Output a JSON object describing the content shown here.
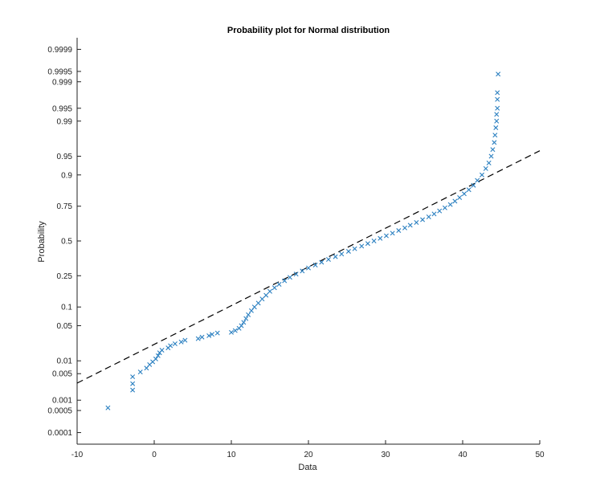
{
  "chart_data": {
    "type": "scatter",
    "title": "Probability plot for Normal distribution",
    "xlabel": "Data",
    "ylabel": "Probability",
    "xlim": [
      -10,
      50
    ],
    "x_ticks": [
      -10,
      0,
      10,
      20,
      30,
      40,
      50
    ],
    "y_scale": "normal-probability",
    "y_ticks": [
      {
        "p": 0.0001,
        "label": "0.0001"
      },
      {
        "p": 0.0005,
        "label": "0.0005"
      },
      {
        "p": 0.001,
        "label": "0.001"
      },
      {
        "p": 0.005,
        "label": "0.005"
      },
      {
        "p": 0.01,
        "label": "0.01"
      },
      {
        "p": 0.05,
        "label": "0.05"
      },
      {
        "p": 0.1,
        "label": "0.1"
      },
      {
        "p": 0.25,
        "label": "0.25"
      },
      {
        "p": 0.5,
        "label": "0.5"
      },
      {
        "p": 0.75,
        "label": "0.75"
      },
      {
        "p": 0.9,
        "label": "0.9"
      },
      {
        "p": 0.95,
        "label": "0.95"
      },
      {
        "p": 0.99,
        "label": "0.99"
      },
      {
        "p": 0.995,
        "label": "0.995"
      },
      {
        "p": 0.999,
        "label": "0.999"
      },
      {
        "p": 0.9995,
        "label": "0.9995"
      },
      {
        "p": 0.9999,
        "label": "0.9999"
      }
    ],
    "grid": false,
    "marker": "x",
    "series_color": "#2a7fc0",
    "reference_line": {
      "style": "dashed",
      "color": "#000000",
      "x": [
        -10,
        50
      ],
      "p": [
        0.0029,
        0.96
      ]
    },
    "points": [
      [
        -6.0,
        0.0006
      ],
      [
        -2.8,
        0.0019
      ],
      [
        -2.8,
        0.0028
      ],
      [
        -2.8,
        0.0042
      ],
      [
        -1.8,
        0.0055
      ],
      [
        -1.0,
        0.0068
      ],
      [
        -0.6,
        0.0082
      ],
      [
        -0.2,
        0.0095
      ],
      [
        0.2,
        0.011
      ],
      [
        0.5,
        0.013
      ],
      [
        0.7,
        0.015
      ],
      [
        1.0,
        0.017
      ],
      [
        1.8,
        0.019
      ],
      [
        2.1,
        0.021
      ],
      [
        2.7,
        0.023
      ],
      [
        3.5,
        0.025
      ],
      [
        4.0,
        0.027
      ],
      [
        5.7,
        0.029
      ],
      [
        6.2,
        0.031
      ],
      [
        7.1,
        0.033
      ],
      [
        7.5,
        0.035
      ],
      [
        8.2,
        0.037
      ],
      [
        10.0,
        0.038
      ],
      [
        10.5,
        0.041
      ],
      [
        11.0,
        0.045
      ],
      [
        11.3,
        0.05
      ],
      [
        11.6,
        0.057
      ],
      [
        11.9,
        0.066
      ],
      [
        12.2,
        0.076
      ],
      [
        12.6,
        0.088
      ],
      [
        13.0,
        0.1
      ],
      [
        13.5,
        0.114
      ],
      [
        14.0,
        0.13
      ],
      [
        14.5,
        0.146
      ],
      [
        15.0,
        0.164
      ],
      [
        15.6,
        0.182
      ],
      [
        16.2,
        0.2
      ],
      [
        16.9,
        0.22
      ],
      [
        17.6,
        0.24
      ],
      [
        18.4,
        0.26
      ],
      [
        19.2,
        0.28
      ],
      [
        20.0,
        0.3
      ],
      [
        20.9,
        0.32
      ],
      [
        21.7,
        0.34
      ],
      [
        22.6,
        0.36
      ],
      [
        23.5,
        0.38
      ],
      [
        24.3,
        0.4
      ],
      [
        25.2,
        0.42
      ],
      [
        26.0,
        0.44
      ],
      [
        26.9,
        0.46
      ],
      [
        27.7,
        0.48
      ],
      [
        28.5,
        0.5
      ],
      [
        29.3,
        0.52
      ],
      [
        30.1,
        0.54
      ],
      [
        30.9,
        0.56
      ],
      [
        31.7,
        0.58
      ],
      [
        32.5,
        0.6
      ],
      [
        33.2,
        0.62
      ],
      [
        34.0,
        0.64
      ],
      [
        34.8,
        0.66
      ],
      [
        35.6,
        0.68
      ],
      [
        36.3,
        0.7
      ],
      [
        37.0,
        0.72
      ],
      [
        37.7,
        0.74
      ],
      [
        38.4,
        0.76
      ],
      [
        39.0,
        0.78
      ],
      [
        39.6,
        0.8
      ],
      [
        40.2,
        0.82
      ],
      [
        40.8,
        0.84
      ],
      [
        41.4,
        0.86
      ],
      [
        41.9,
        0.88
      ],
      [
        42.5,
        0.9
      ],
      [
        43.0,
        0.92
      ],
      [
        43.4,
        0.935
      ],
      [
        43.7,
        0.95
      ],
      [
        43.9,
        0.962
      ],
      [
        44.1,
        0.972
      ],
      [
        44.2,
        0.98
      ],
      [
        44.3,
        0.986
      ],
      [
        44.4,
        0.99
      ],
      [
        44.4,
        0.993
      ],
      [
        44.5,
        0.995
      ],
      [
        44.5,
        0.997
      ],
      [
        44.5,
        0.998
      ],
      [
        44.6,
        0.9994
      ]
    ]
  }
}
